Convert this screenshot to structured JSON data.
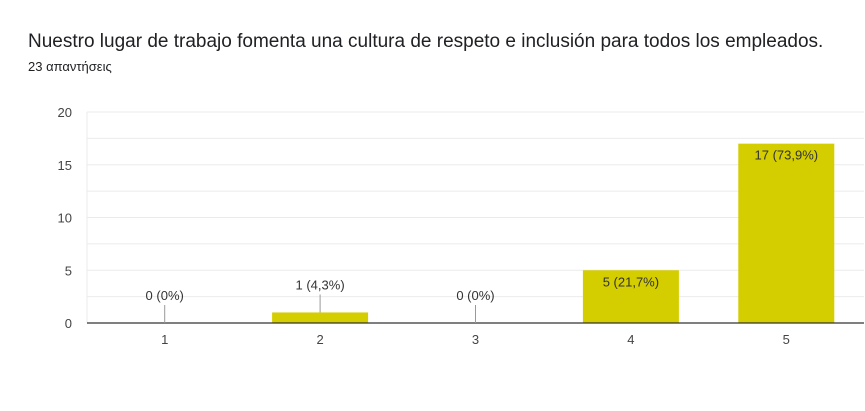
{
  "header": {
    "title": "Nuestro lugar de trabajo fomenta una cultura de respeto e inclusión para todos los empleados.",
    "responses": "23 απαντήσεις"
  },
  "colors": {
    "bar": "#d4cd00",
    "grid": "#ebebeb",
    "axis": "#333333",
    "leader": "#999999"
  },
  "chart_data": {
    "type": "bar",
    "categories": [
      "1",
      "2",
      "3",
      "4",
      "5"
    ],
    "values": [
      0,
      1,
      0,
      5,
      17
    ],
    "data_labels": [
      "0 (0%)",
      "1 (4,3%)",
      "0 (0%)",
      "5 (21,7%)",
      "17 (73,9%)"
    ],
    "ylim": [
      0,
      20
    ],
    "yticks": [
      0,
      5,
      10,
      15,
      20
    ],
    "minor_grid_step": 2.5,
    "grid": true,
    "legend": "none"
  }
}
